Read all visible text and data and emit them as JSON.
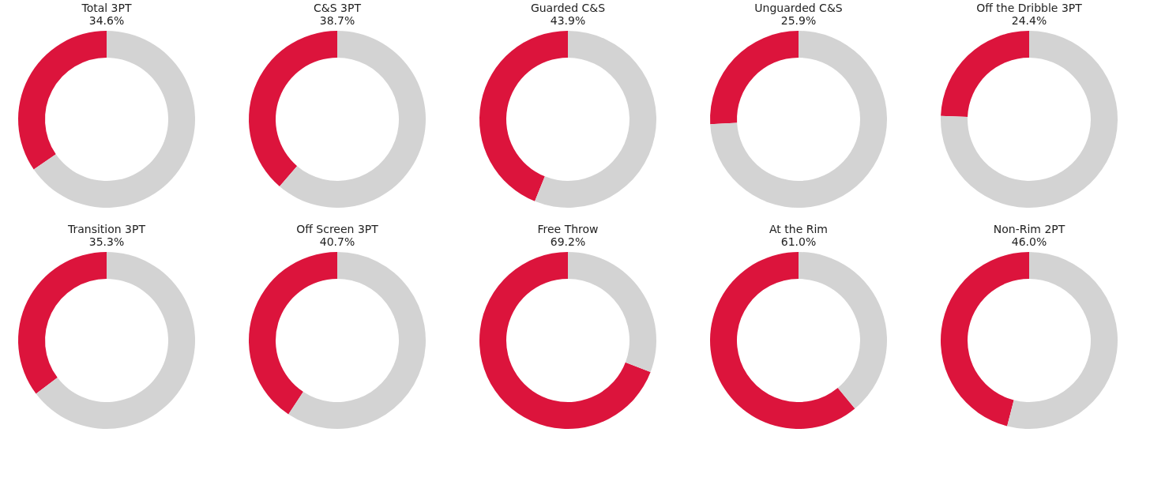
{
  "chart_data": [
    {
      "type": "donut",
      "title": "Total 3PT",
      "subtitle": "34.6%",
      "categories": [
        null,
        null
      ],
      "values": [
        34.6,
        65.4
      ],
      "colors": [
        "#dc143c",
        "#d3d3d3"
      ]
    },
    {
      "type": "donut",
      "title": "C&S 3PT",
      "subtitle": "38.7%",
      "categories": [
        null,
        null
      ],
      "values": [
        38.7,
        61.3
      ],
      "colors": [
        "#dc143c",
        "#d3d3d3"
      ]
    },
    {
      "type": "donut",
      "title": "Guarded C&S",
      "subtitle": "43.9%",
      "categories": [
        null,
        null
      ],
      "values": [
        43.9,
        56.1
      ],
      "colors": [
        "#dc143c",
        "#d3d3d3"
      ]
    },
    {
      "type": "donut",
      "title": "Unguarded C&S",
      "subtitle": "25.9%",
      "categories": [
        null,
        null
      ],
      "values": [
        25.9,
        74.1
      ],
      "colors": [
        "#dc143c",
        "#d3d3d3"
      ]
    },
    {
      "type": "donut",
      "title": "Off the Dribble 3PT",
      "subtitle": "24.4%",
      "categories": [
        null,
        null
      ],
      "values": [
        24.4,
        75.6
      ],
      "colors": [
        "#dc143c",
        "#d3d3d3"
      ]
    },
    {
      "type": "donut",
      "title": "Transition 3PT",
      "subtitle": "35.3%",
      "categories": [
        null,
        null
      ],
      "values": [
        35.3,
        64.7
      ],
      "colors": [
        "#dc143c",
        "#d3d3d3"
      ]
    },
    {
      "type": "donut",
      "title": "Off Screen 3PT",
      "subtitle": "40.7%",
      "categories": [
        null,
        null
      ],
      "values": [
        40.7,
        59.3
      ],
      "colors": [
        "#dc143c",
        "#d3d3d3"
      ]
    },
    {
      "type": "donut",
      "title": "Free Throw",
      "subtitle": "69.2%",
      "categories": [
        null,
        null
      ],
      "values": [
        69.2,
        30.8
      ],
      "colors": [
        "#dc143c",
        "#d3d3d3"
      ]
    },
    {
      "type": "donut",
      "title": "At the Rim",
      "subtitle": "61.0%",
      "categories": [
        null,
        null
      ],
      "values": [
        61.0,
        39.0
      ],
      "colors": [
        "#dc143c",
        "#d3d3d3"
      ]
    },
    {
      "type": "donut",
      "title": "Non-Rim 2PT",
      "subtitle": "46.0%",
      "categories": [
        null,
        null
      ],
      "values": [
        46.0,
        54.0
      ],
      "colors": [
        "#dc143c",
        "#d3d3d3"
      ]
    }
  ]
}
